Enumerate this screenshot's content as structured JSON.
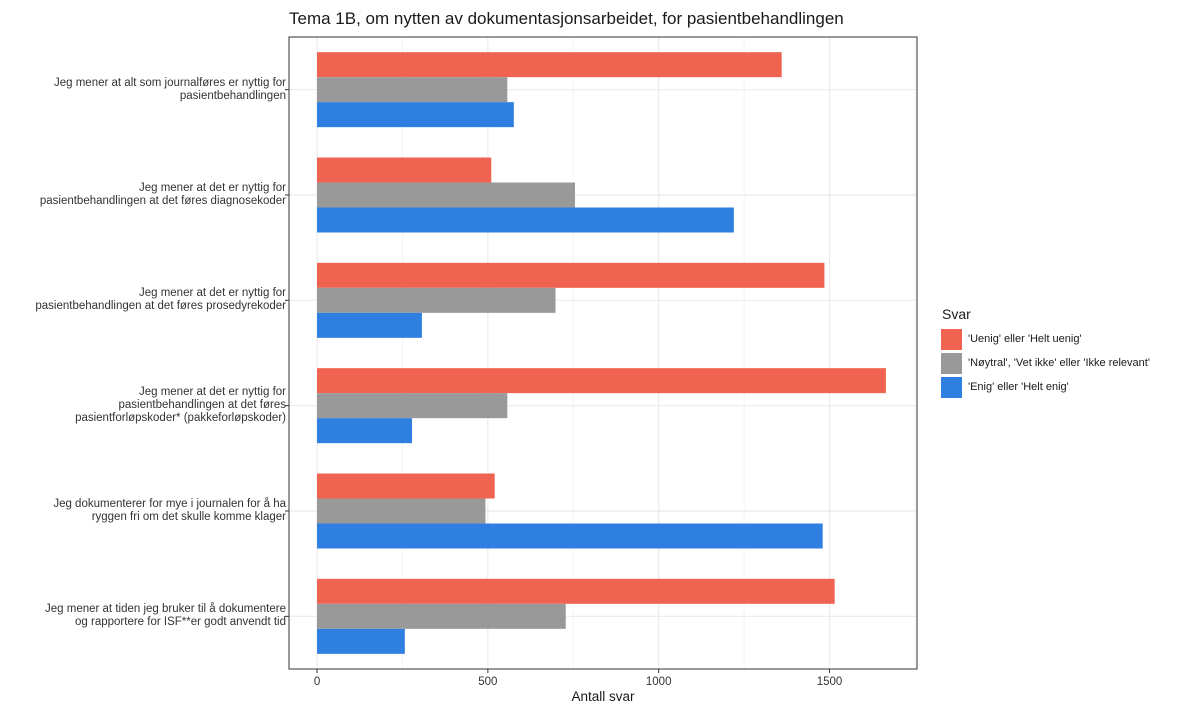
{
  "chart_data": {
    "type": "bar",
    "orientation": "horizontal",
    "title": "Tema 1B, om nytten av dokumentasjonsarbeidet, for pasientbehandlingen",
    "xlabel": "Antall svar",
    "ylabel": "",
    "xlim": [
      -82,
      1756
    ],
    "xticks": [
      "0",
      "500",
      "1000",
      "1500"
    ],
    "grid": true,
    "legend_title": "Svar",
    "legend_position": "right",
    "categories": [
      [
        "Jeg mener at alt som journalføres er nyttig for",
        "pasientbehandlingen"
      ],
      [
        "Jeg mener at det er nyttig for",
        "pasientbehandlingen at det føres diagnosekoder"
      ],
      [
        "Jeg mener at det er nyttig for",
        "pasientbehandlingen at det føres prosedyrekoder"
      ],
      [
        "Jeg mener at det er nyttig for",
        "pasientbehandlingen at det føres",
        "pasientforløpskoder* (pakkeforløpskoder)"
      ],
      [
        "Jeg dokumenterer for mye i journalen for å ha",
        "ryggen fri om det skulle komme klager"
      ],
      [
        "Jeg mener at tiden jeg bruker til å dokumentere",
        "og rapportere for ISF**er godt anvendt tid"
      ]
    ],
    "series": [
      {
        "name": "'Uenig' eller 'Helt uenig'",
        "color": "#ef6350",
        "values": [
          1360,
          510,
          1485,
          1665,
          520,
          1515
        ]
      },
      {
        "name": "'Nøytral', 'Vet ikke' eller 'Ikke relevant'",
        "color": "#999999",
        "values": [
          557,
          755,
          698,
          557,
          493,
          728
        ]
      },
      {
        "name": "'Enig' eller 'Helt enig'",
        "color": "#2e7fe0",
        "values": [
          576,
          1220,
          307,
          278,
          1480,
          257
        ]
      }
    ]
  }
}
